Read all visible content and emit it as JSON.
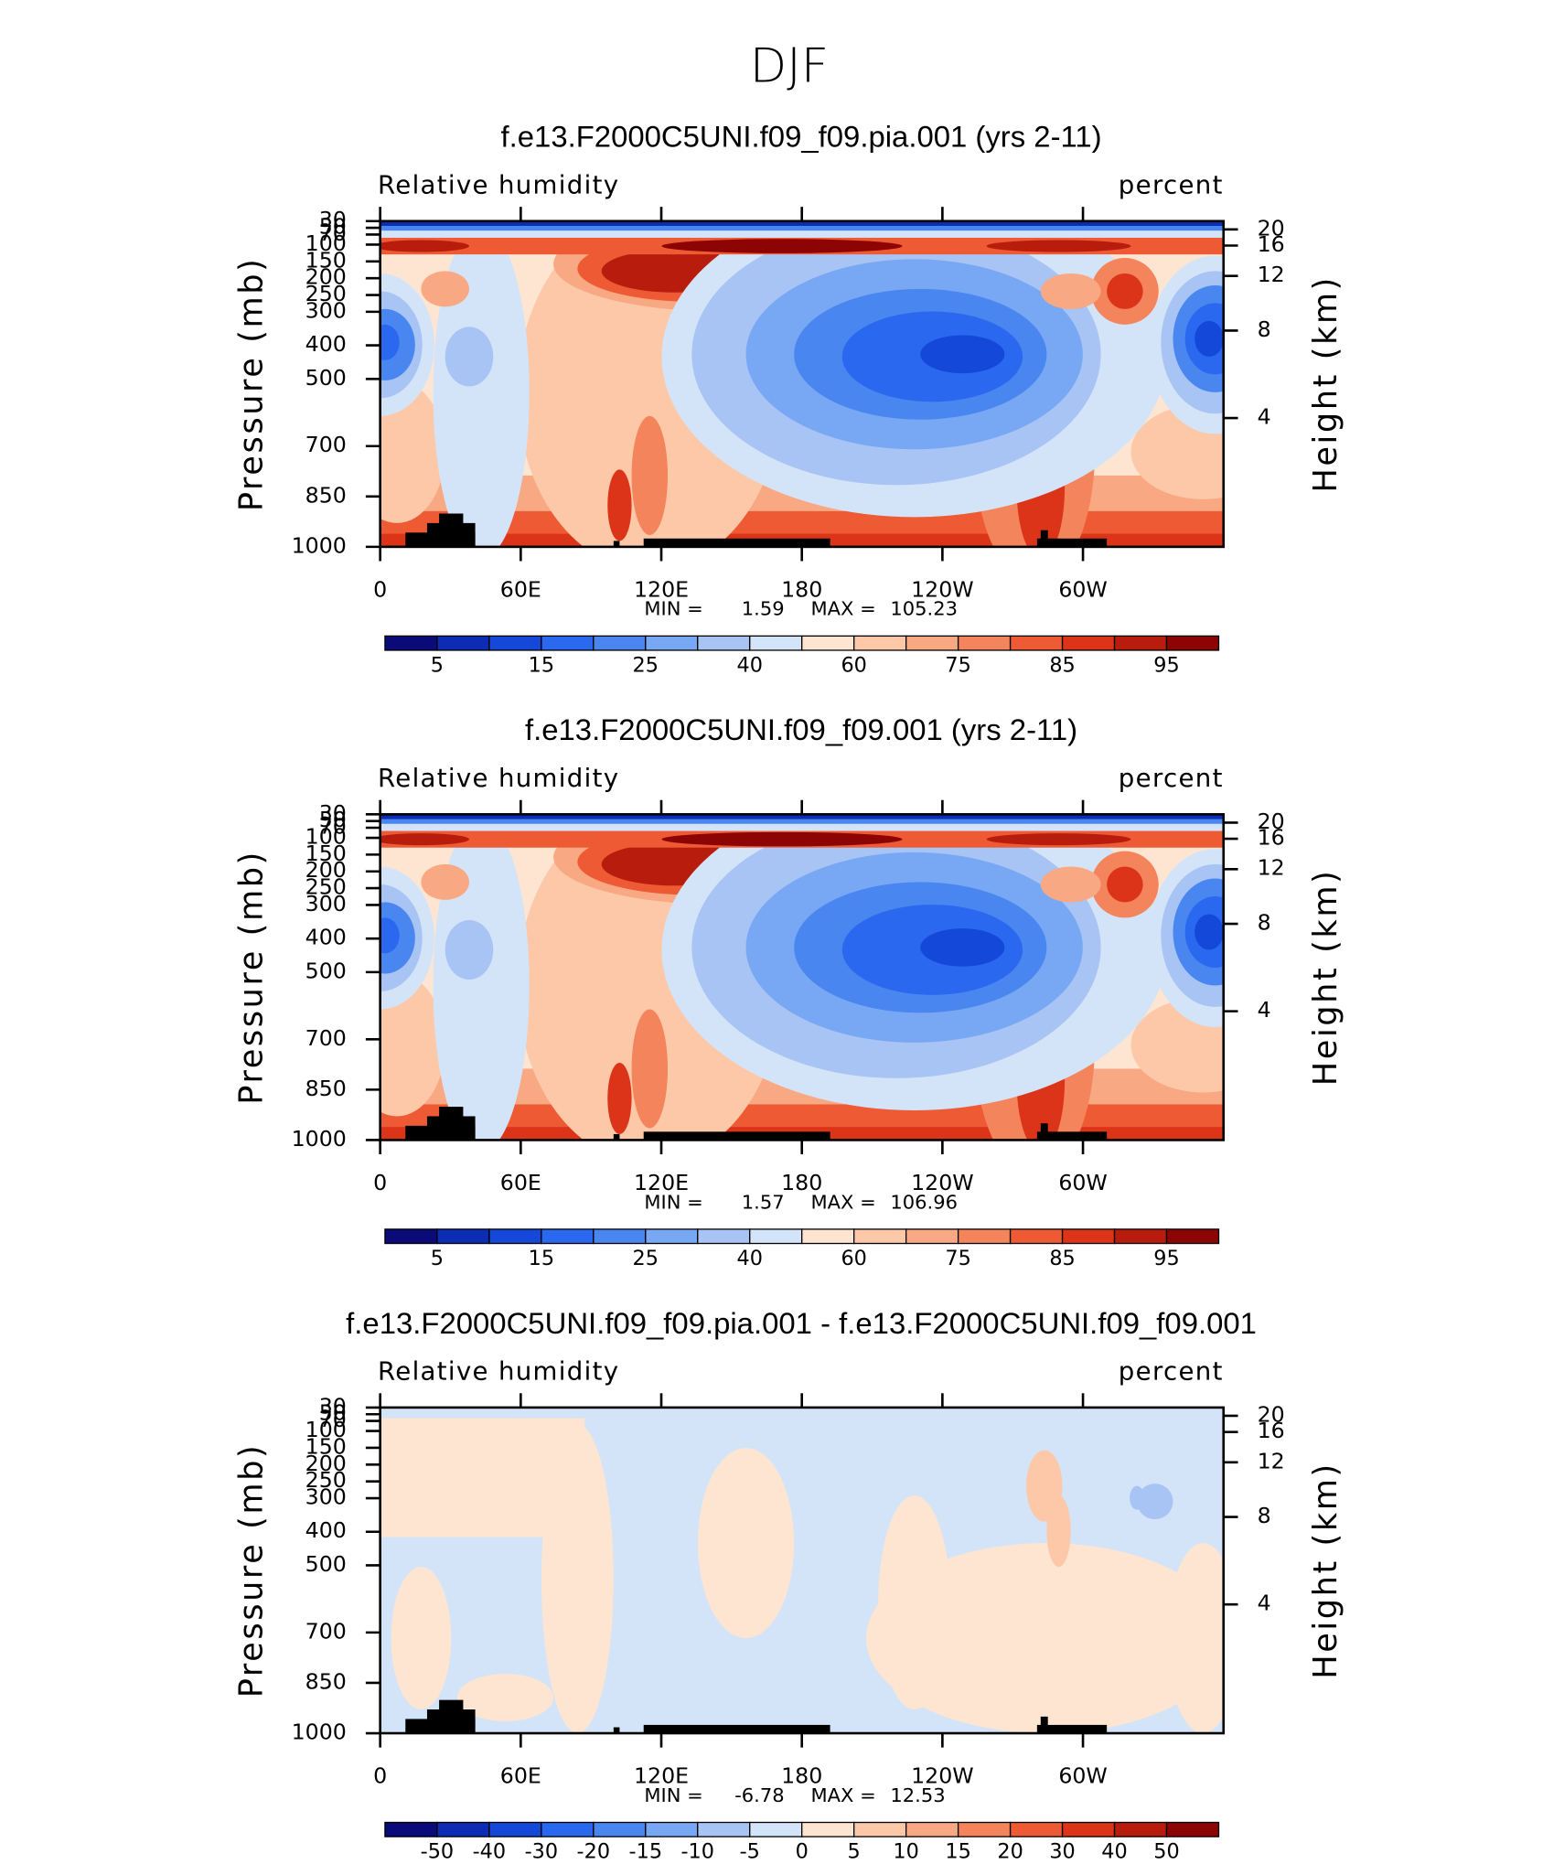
{
  "title": "DJF",
  "chart_data": [
    {
      "type": "contour",
      "title": "f.e13.F2000C5UNI.f09_f09.pia.001 (yrs 2-11)",
      "left_label": "Relative humidity",
      "right_label": "percent",
      "ylabel": "Pressure (mb)",
      "y2label": "Height (km)",
      "xlim": [
        0,
        360
      ],
      "xticks": [
        0,
        {
          "value": 60,
          "label": "60E"
        },
        {
          "value": 120,
          "label": "120E"
        },
        180,
        {
          "value": 240,
          "label": "120W"
        },
        {
          "value": 300,
          "label": "60W"
        }
      ],
      "ylim": [
        1000,
        30
      ],
      "yticks": [
        30,
        50,
        70,
        100,
        150,
        200,
        250,
        300,
        400,
        500,
        700,
        850,
        1000
      ],
      "y2lim": [
        0.11,
        23.85
      ],
      "y2ticks": [
        4,
        8,
        12,
        16,
        20
      ],
      "min_label": "MIN =",
      "min": 1.59,
      "max_label": "MAX =",
      "max": 105.23,
      "colorbar": {
        "colors": [
          "#0a0a78",
          "#0c2cb4",
          "#1448d8",
          "#2a68f0",
          "#4a86f0",
          "#78a8f4",
          "#a8c4f4",
          "#d4e4f8",
          "#fde5d2",
          "#fcc8a8",
          "#f8a882",
          "#f4845c",
          "#ee5a34",
          "#dc3418",
          "#b81c0c",
          "#8c0404"
        ],
        "labels": [
          5,
          15,
          25,
          40,
          60,
          75,
          85,
          95
        ]
      }
    },
    {
      "type": "contour",
      "title": "f.e13.F2000C5UNI.f09_f09.001 (yrs 2-11)",
      "left_label": "Relative humidity",
      "right_label": "percent",
      "ylabel": "Pressure (mb)",
      "y2label": "Height (km)",
      "xlim": [
        0,
        360
      ],
      "xticks": [
        0,
        {
          "value": 60,
          "label": "60E"
        },
        {
          "value": 120,
          "label": "120E"
        },
        180,
        {
          "value": 240,
          "label": "120W"
        },
        {
          "value": 300,
          "label": "60W"
        }
      ],
      "ylim": [
        1000,
        30
      ],
      "yticks": [
        30,
        50,
        70,
        100,
        150,
        200,
        250,
        300,
        400,
        500,
        700,
        850,
        1000
      ],
      "y2lim": [
        0.11,
        23.85
      ],
      "y2ticks": [
        4,
        8,
        12,
        16,
        20
      ],
      "min_label": "MIN =",
      "min": 1.57,
      "max_label": "MAX =",
      "max": 106.96,
      "colorbar": {
        "colors": [
          "#0a0a78",
          "#0c2cb4",
          "#1448d8",
          "#2a68f0",
          "#4a86f0",
          "#78a8f4",
          "#a8c4f4",
          "#d4e4f8",
          "#fde5d2",
          "#fcc8a8",
          "#f8a882",
          "#f4845c",
          "#ee5a34",
          "#dc3418",
          "#b81c0c",
          "#8c0404"
        ],
        "labels": [
          5,
          15,
          25,
          40,
          60,
          75,
          85,
          95
        ]
      }
    },
    {
      "type": "contour",
      "title": "f.e13.F2000C5UNI.f09_f09.pia.001 - f.e13.F2000C5UNI.f09_f09.001",
      "left_label": "Relative humidity",
      "right_label": "percent",
      "ylabel": "Pressure (mb)",
      "y2label": "Height (km)",
      "xlim": [
        0,
        360
      ],
      "xticks": [
        0,
        {
          "value": 60,
          "label": "60E"
        },
        {
          "value": 120,
          "label": "120E"
        },
        180,
        {
          "value": 240,
          "label": "120W"
        },
        {
          "value": 300,
          "label": "60W"
        }
      ],
      "ylim": [
        1000,
        30
      ],
      "yticks": [
        30,
        50,
        70,
        100,
        150,
        200,
        250,
        300,
        400,
        500,
        700,
        850,
        1000
      ],
      "y2lim": [
        0.11,
        23.85
      ],
      "y2ticks": [
        4,
        8,
        12,
        16,
        20
      ],
      "min_label": "MIN =",
      "min": -6.78,
      "max_label": "MAX =",
      "max": 12.53,
      "colorbar": {
        "colors": [
          "#0a0a78",
          "#0c2cb4",
          "#1448d8",
          "#2a68f0",
          "#4a86f0",
          "#78a8f4",
          "#a8c4f4",
          "#d4e4f8",
          "#fde5d2",
          "#fcc8a8",
          "#f8a882",
          "#f4845c",
          "#ee5a34",
          "#dc3418",
          "#b81c0c",
          "#8c0404"
        ],
        "labels": [
          -50,
          -40,
          -30,
          -20,
          -15,
          -10,
          -5,
          0,
          5,
          10,
          15,
          20,
          30,
          40,
          50
        ]
      }
    }
  ]
}
